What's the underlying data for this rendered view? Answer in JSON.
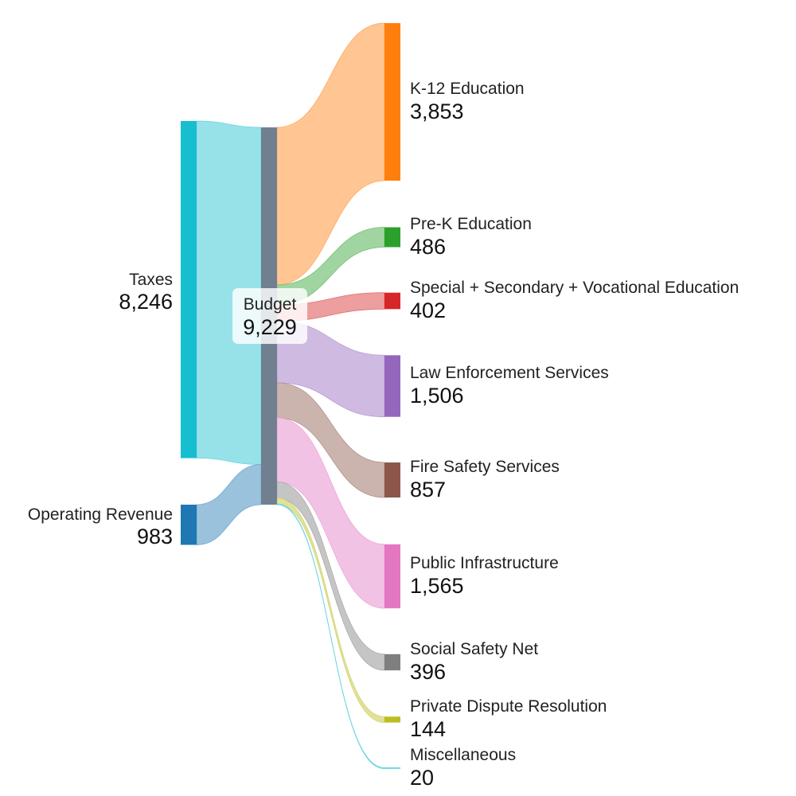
{
  "chart_data": {
    "type": "sankey",
    "nodes": [
      {
        "id": "taxes",
        "name": "Taxes",
        "value_label": "8,246",
        "value": 8246,
        "column": 0,
        "color": "#17becf"
      },
      {
        "id": "operating-revenue",
        "name": "Operating Revenue",
        "value_label": "983",
        "value": 983,
        "column": 0,
        "color": "#1f77b4"
      },
      {
        "id": "budget",
        "name": "Budget",
        "value_label": "9,229",
        "value": 9229,
        "column": 1,
        "color": "#708090"
      },
      {
        "id": "k12-education",
        "name": "K-12 Education",
        "value_label": "3,853",
        "value": 3853,
        "column": 2,
        "color": "#ff7f0e"
      },
      {
        "id": "pre-k-education",
        "name": "Pre-K Education",
        "value_label": "486",
        "value": 486,
        "column": 2,
        "color": "#2ca02c"
      },
      {
        "id": "special-secondary-vocational-education",
        "name": "Special + Secondary + Vocational Education",
        "value_label": "402",
        "value": 402,
        "column": 2,
        "color": "#d62728"
      },
      {
        "id": "law-enforcement-services",
        "name": "Law Enforcement Services",
        "value_label": "1,506",
        "value": 1506,
        "column": 2,
        "color": "#9467bd"
      },
      {
        "id": "fire-safety-services",
        "name": "Fire Safety Services",
        "value_label": "857",
        "value": 857,
        "column": 2,
        "color": "#8c564b"
      },
      {
        "id": "public-infrastructure",
        "name": "Public Infrastructure",
        "value_label": "1,565",
        "value": 1565,
        "column": 2,
        "color": "#e377c2"
      },
      {
        "id": "social-safety-net",
        "name": "Social Safety Net",
        "value_label": "396",
        "value": 396,
        "column": 2,
        "color": "#7f7f7f"
      },
      {
        "id": "private-dispute-resolution",
        "name": "Private Dispute Resolution",
        "value_label": "144",
        "value": 144,
        "column": 2,
        "color": "#bcbd22"
      },
      {
        "id": "miscellaneous",
        "name": "Miscellaneous",
        "value_label": "20",
        "value": 20,
        "column": 2,
        "color": "#17becf"
      }
    ],
    "links": [
      {
        "source": "taxes",
        "target": "budget",
        "value": 8246
      },
      {
        "source": "operating-revenue",
        "target": "budget",
        "value": 983
      },
      {
        "source": "budget",
        "target": "k12-education",
        "value": 3853
      },
      {
        "source": "budget",
        "target": "pre-k-education",
        "value": 486
      },
      {
        "source": "budget",
        "target": "special-secondary-vocational-education",
        "value": 402
      },
      {
        "source": "budget",
        "target": "law-enforcement-services",
        "value": 1506
      },
      {
        "source": "budget",
        "target": "fire-safety-services",
        "value": 857
      },
      {
        "source": "budget",
        "target": "public-infrastructure",
        "value": 1565
      },
      {
        "source": "budget",
        "target": "social-safety-net",
        "value": 396
      },
      {
        "source": "budget",
        "target": "private-dispute-resolution",
        "value": 144
      },
      {
        "source": "budget",
        "target": "miscellaneous",
        "value": 20
      }
    ]
  }
}
